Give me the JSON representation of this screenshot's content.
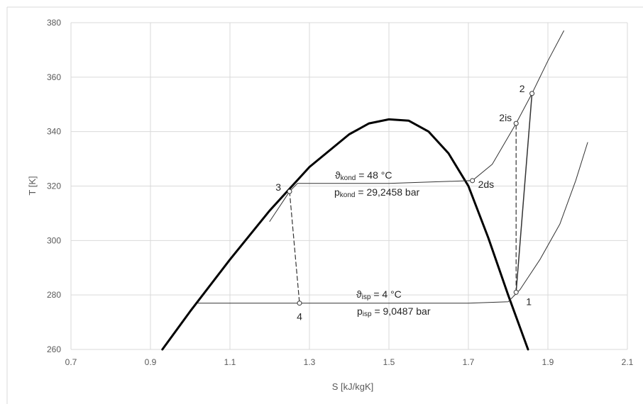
{
  "chart_data": {
    "type": "scatter",
    "xlabel": "S [kJ/kgK]",
    "ylabel": "T [K]",
    "xlim": [
      0.7,
      2.1
    ],
    "ylim": [
      260,
      380
    ],
    "xticks": [
      "0.7",
      "0.9",
      "1.1",
      "1.3",
      "1.5",
      "1.7",
      "1.9",
      "2.1"
    ],
    "yticks": [
      "260",
      "280",
      "300",
      "320",
      "340",
      "360",
      "380"
    ],
    "grid": true,
    "legend": "none",
    "series": [
      {
        "style": "saturation-dome",
        "x": [
          0.93,
          1.0,
          1.1,
          1.2,
          1.3,
          1.4,
          1.45,
          1.5,
          1.55,
          1.6,
          1.65,
          1.7,
          1.75,
          1.8,
          1.85
        ],
        "y": [
          260,
          274,
          293,
          311,
          327,
          339,
          343,
          344.5,
          344,
          340,
          332,
          320,
          301,
          280,
          260
        ]
      },
      {
        "style": "isobar-condensing",
        "x": [
          1.2,
          1.25,
          1.27,
          1.5,
          1.71,
          1.76,
          1.82,
          1.86,
          1.9,
          1.94
        ],
        "y": [
          307,
          318,
          321,
          321,
          322,
          328,
          343,
          354,
          366,
          377
        ]
      },
      {
        "style": "isobar-evaporating",
        "x": [
          1.02,
          1.3,
          1.5,
          1.7,
          1.8,
          1.83,
          1.88,
          1.93,
          1.97,
          2.0
        ],
        "y": [
          277,
          277,
          277,
          277,
          277.5,
          282,
          293,
          306,
          322,
          336
        ]
      },
      {
        "style": "compression",
        "x": [
          1.82,
          1.86
        ],
        "y": [
          281,
          354
        ]
      },
      {
        "style": "isentropic-dashed",
        "x": [
          1.82,
          1.82
        ],
        "y": [
          281,
          343
        ]
      },
      {
        "style": "throttling-dashed",
        "x": [
          1.25,
          1.275
        ],
        "y": [
          318,
          277
        ]
      }
    ],
    "points": [
      {
        "label": "1",
        "x": 1.82,
        "y": 281
      },
      {
        "label": "2",
        "x": 1.86,
        "y": 354
      },
      {
        "label": "2is",
        "x": 1.82,
        "y": 343
      },
      {
        "label": "2ds",
        "x": 1.71,
        "y": 322
      },
      {
        "label": "3",
        "x": 1.25,
        "y": 318
      },
      {
        "label": "4",
        "x": 1.275,
        "y": 277
      }
    ],
    "annotations": {
      "kond_temp": {
        "symbol": "ϑ",
        "sub": "kond",
        "rest": " = 48 °C"
      },
      "kond_press": {
        "symbol": "p",
        "sub": "kond",
        "rest": " = 29,2458 bar"
      },
      "isp_temp": {
        "symbol": "ϑ",
        "sub": "isp",
        "rest": " = 4 °C"
      },
      "isp_press": {
        "symbol": "p",
        "sub": "isp",
        "rest": " = 9,0487 bar"
      }
    }
  }
}
